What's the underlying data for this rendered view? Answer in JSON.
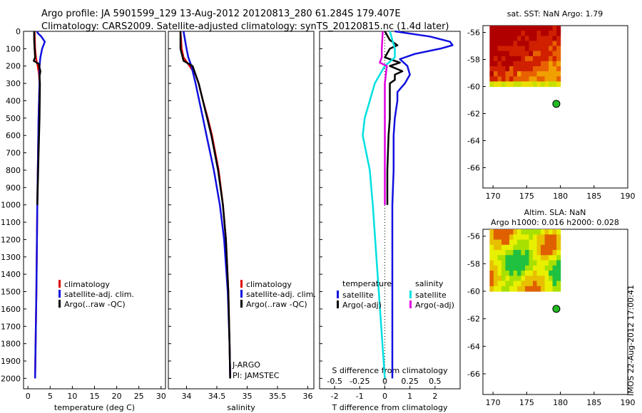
{
  "header": {
    "line1": "Argo profile: JA 5901599_129 13-Aug-2012 20120813_280 61.284S 179.407E",
    "line2": "Climatology: CARS2009. Satellite-adjusted climatology: synTS_20120815.nc (1.4d later)"
  },
  "side_stamp": "IMOS 22-Aug-2012 17:00:41",
  "colors": {
    "climatology": "#e00000",
    "satellite": "#1010e0",
    "argo": "#000000",
    "cyan": "#00e0e0",
    "magenta": "#e000e0",
    "dot": "#22bb22"
  },
  "chart_data": [
    {
      "type": "line",
      "name": "temperature-profile",
      "xlabel": "temperature (deg C)",
      "ylabel": "",
      "xlim": [
        -1,
        31
      ],
      "ylim": [
        2060,
        0
      ],
      "xticks": [
        0,
        5,
        10,
        15,
        20,
        25,
        30
      ],
      "yticks": [
        0,
        100,
        200,
        300,
        400,
        500,
        600,
        700,
        800,
        900,
        1000,
        1100,
        1200,
        1300,
        1400,
        1500,
        1600,
        1700,
        1800,
        1900,
        2000
      ],
      "legend": [
        "climatology",
        "satellite-adj. clim.",
        "Argo(..raw -QC)"
      ],
      "series": [
        {
          "name": "climatology",
          "color": "red",
          "depth": [
            0,
            100,
            150,
            180,
            200,
            250,
            300,
            500,
            1000,
            1500,
            2000
          ],
          "values": [
            1.5,
            1.6,
            1.8,
            2.0,
            2.2,
            2.5,
            2.6,
            2.4,
            2.1,
            1.9,
            1.6
          ]
        },
        {
          "name": "satellite-adj. clim.",
          "color": "blue",
          "depth": [
            0,
            10,
            30,
            60,
            80,
            100,
            150,
            200,
            250,
            300,
            500,
            1000,
            1500,
            2000
          ],
          "values": [
            2.0,
            2.2,
            3.0,
            3.8,
            3.5,
            3.2,
            2.8,
            2.6,
            2.6,
            2.6,
            2.4,
            2.1,
            1.9,
            1.6
          ]
        },
        {
          "name": "Argo(..raw -QC)",
          "color": "black",
          "depth": [
            0,
            50,
            100,
            150,
            170,
            190,
            200,
            230,
            260,
            300,
            500,
            700,
            1000
          ],
          "values": [
            1.4,
            1.4,
            1.5,
            1.6,
            1.3,
            2.6,
            2.5,
            2.8,
            2.6,
            2.7,
            2.6,
            2.4,
            2.1
          ]
        }
      ]
    },
    {
      "type": "line",
      "name": "salinity-profile",
      "xlabel": "salinity",
      "xlim": [
        33.7,
        36.1
      ],
      "ylim": [
        2060,
        0
      ],
      "xticks": [
        34,
        34.5,
        35,
        35.5,
        36
      ],
      "legend": [
        "climatology",
        "satellite-adj. clim.",
        "Argo(..raw -QC)"
      ],
      "float_note": [
        "J-ARGO",
        "PI: JAMSTEC"
      ],
      "series": [
        {
          "name": "climatology",
          "color": "red",
          "depth": [
            0,
            100,
            150,
            200,
            250,
            300,
            400,
            500,
            600,
            800,
            1000,
            1200,
            1500,
            1800,
            2000
          ],
          "values": [
            33.9,
            33.92,
            33.95,
            34.05,
            34.15,
            34.2,
            34.27,
            34.35,
            34.42,
            34.53,
            34.6,
            34.65,
            34.69,
            34.71,
            34.72
          ]
        },
        {
          "name": "satellite-adj. clim.",
          "color": "blue",
          "depth": [
            0,
            100,
            150,
            200,
            300,
            400,
            500,
            600,
            800,
            1000,
            1200,
            1500,
            1800,
            2000
          ],
          "values": [
            33.95,
            34.0,
            34.03,
            34.08,
            34.15,
            34.21,
            34.27,
            34.33,
            34.45,
            34.55,
            34.62,
            34.68,
            34.71,
            34.72
          ]
        },
        {
          "name": "Argo(..raw -QC)",
          "color": "black",
          "depth": [
            0,
            100,
            170,
            200,
            300,
            400,
            500,
            600,
            800,
            1000,
            1200,
            1500,
            1800,
            2000
          ],
          "values": [
            33.9,
            33.9,
            33.95,
            34.1,
            34.2,
            34.27,
            34.34,
            34.41,
            34.52,
            34.6,
            34.65,
            34.69,
            34.71,
            34.72
          ]
        }
      ]
    },
    {
      "type": "line",
      "name": "difference-profile",
      "xlabel": "T difference from climatology",
      "x2label": "S difference from climatology",
      "xlim": [
        -2.6,
        3.0
      ],
      "ylim": [
        2060,
        0
      ],
      "xticks": [
        -2,
        -1,
        0,
        1,
        2
      ],
      "x2ticks": [
        "-0.5",
        "-0.25",
        "0",
        "0.25",
        "0.5"
      ],
      "legend_titles": [
        "temperature",
        "salinity"
      ],
      "legend": [
        "satellite",
        "Argo(-adj)",
        "satellite",
        "Argo(-adj)"
      ],
      "series": [
        {
          "name": "T satellite",
          "color": "blue",
          "depth": [
            0,
            30,
            60,
            80,
            100,
            130,
            160,
            200,
            250,
            300,
            350,
            400,
            500,
            600,
            800,
            1000,
            1500,
            2000
          ],
          "values": [
            0.4,
            1.8,
            2.6,
            2.7,
            2.2,
            1.2,
            0.6,
            0.9,
            1.0,
            0.8,
            0.5,
            0.5,
            0.4,
            0.35,
            0.35,
            0.3,
            0.3,
            0.3
          ]
        },
        {
          "name": "T Argo(-adj)",
          "color": "black",
          "depth": [
            0,
            50,
            80,
            100,
            150,
            180,
            200,
            230,
            250,
            280,
            300,
            400,
            500,
            600,
            800,
            1000
          ],
          "values": [
            0.0,
            0.2,
            0.5,
            0.2,
            0.0,
            0.6,
            0.2,
            0.7,
            0.4,
            0.4,
            0.2,
            0.2,
            0.2,
            0.15,
            0.1,
            0.1
          ]
        },
        {
          "name": "S satellite",
          "color": "cyan",
          "depth": [
            0,
            100,
            150,
            200,
            250,
            300,
            400,
            500,
            600,
            800,
            1000,
            1500,
            2000
          ],
          "values": [
            0.05,
            0.1,
            0.1,
            0.0,
            -0.05,
            -0.1,
            -0.15,
            -0.2,
            -0.22,
            -0.15,
            -0.12,
            -0.06,
            0.0
          ]
        },
        {
          "name": "S Argo(-adj)",
          "color": "magenta",
          "depth": [
            0,
            100,
            150,
            180,
            200,
            300,
            500,
            800,
            1000
          ],
          "values": [
            -0.02,
            -0.03,
            -0.03,
            -0.05,
            0.02,
            0.0,
            0.0,
            0.0,
            0.0
          ]
        }
      ]
    },
    {
      "type": "heatmap",
      "name": "satellite-sst-map",
      "title": "sat. SST: NaN Argo: 1.79",
      "xlim": [
        168.5,
        190
      ],
      "ylim": [
        -67.5,
        -55.5
      ],
      "xticks": [
        170,
        175,
        180,
        185,
        190
      ],
      "yticks": [
        -56,
        -58,
        -60,
        -62,
        -64,
        -66
      ],
      "argo_position": [
        179.4,
        -61.28
      ]
    },
    {
      "type": "heatmap",
      "name": "altimetry-sla-map",
      "title": "Altim. SLA: NaN",
      "subtitle": "Argo h1000: 0.016 h2000: 0.028",
      "xlim": [
        168.5,
        190
      ],
      "ylim": [
        -67.5,
        -55.5
      ],
      "xticks": [
        170,
        175,
        180,
        185,
        190
      ],
      "yticks": [
        -56,
        -58,
        -60,
        -62,
        -64,
        -66
      ],
      "argo_position": [
        179.4,
        -61.28
      ]
    }
  ]
}
